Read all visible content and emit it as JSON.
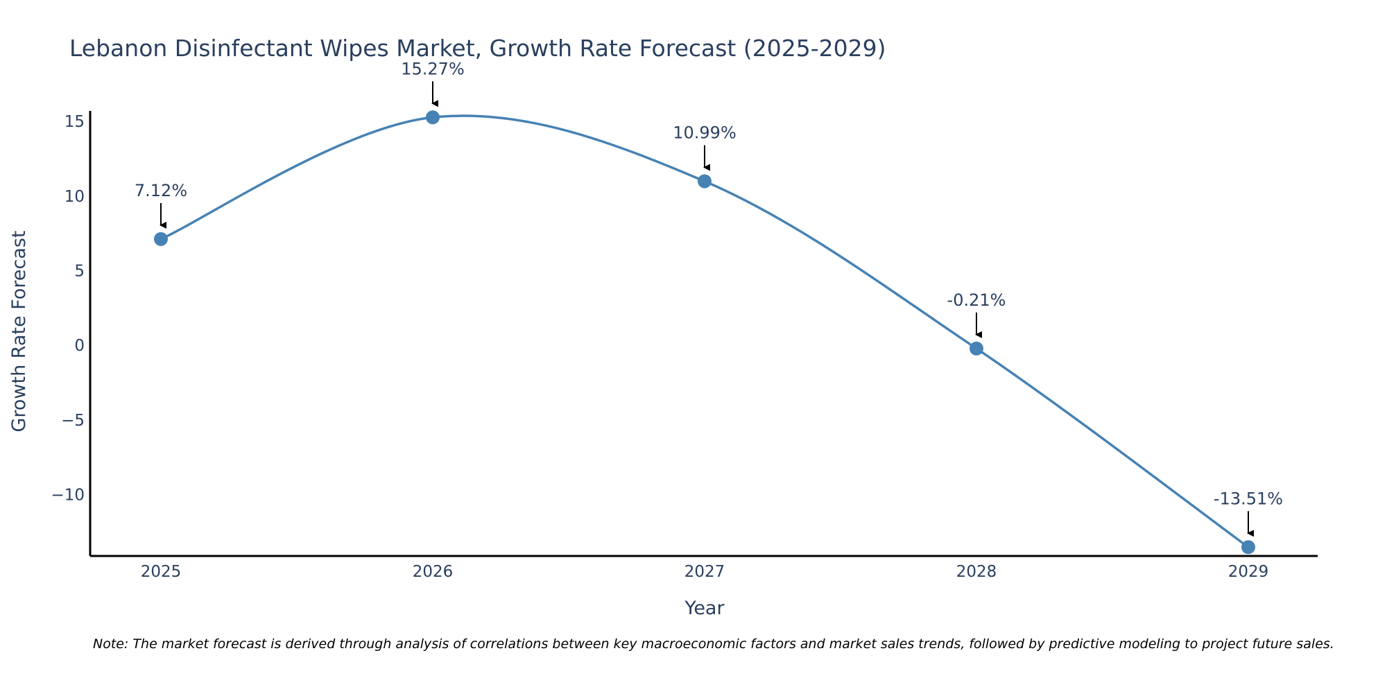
{
  "chart_data": {
    "type": "line",
    "title": "Lebanon Disinfectant Wipes Market, Growth Rate Forecast (2025-2029)",
    "xlabel": "Year",
    "ylabel": "Growth Rate Forecast",
    "categories": [
      "2025",
      "2026",
      "2027",
      "2028",
      "2029"
    ],
    "series": [
      {
        "name": "Growth Rate Forecast",
        "values": [
          7.12,
          15.27,
          10.99,
          -0.21,
          -13.51
        ],
        "labels": [
          "7.12%",
          "15.27%",
          "10.99%",
          "-0.21%",
          "-13.51%"
        ]
      }
    ],
    "y_ticks": [
      15,
      10,
      5,
      0,
      -5,
      -10
    ],
    "y_tick_labels": [
      "15",
      "10",
      "5",
      "0",
      "−5",
      "−10"
    ],
    "ylim": [
      -14.1,
      15.7
    ],
    "grid": false,
    "legend": "none",
    "line_shape": "spline",
    "annotation_arrows": true,
    "colors": {
      "line": "#4682b4",
      "marker": "#4682b4",
      "axis": "#000000",
      "text": "#2a3f5f",
      "arrow": "#000000"
    },
    "note": "Note: The market forecast is derived through analysis of correlations between key macroeconomic factors and market sales trends, followed by predictive modeling to project future sales."
  }
}
